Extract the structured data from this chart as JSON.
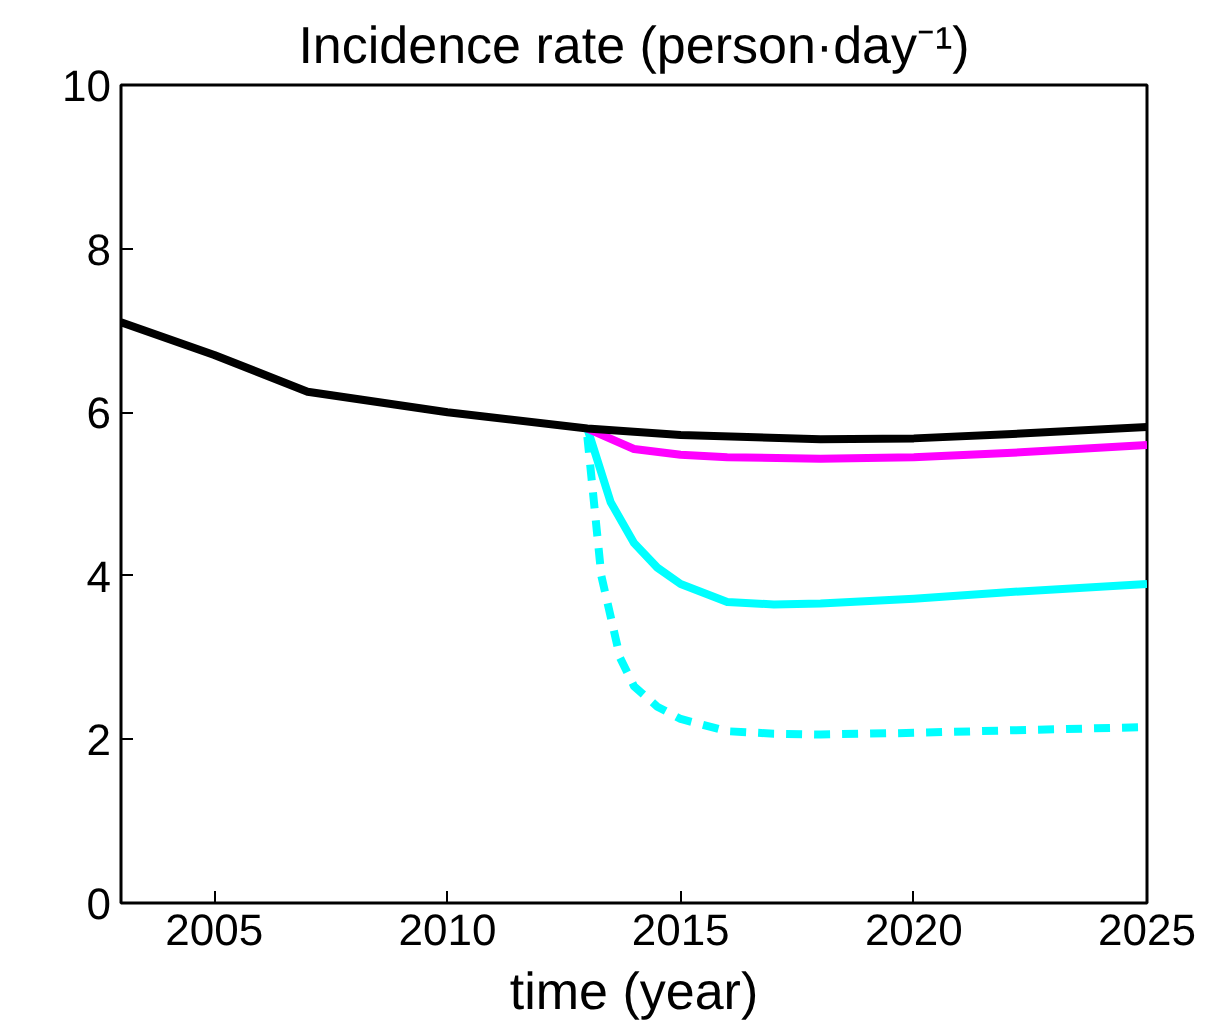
{
  "chart_data": {
    "type": "line",
    "title": "Incidence rate (person·day⁻¹)",
    "xlabel": "time (year)",
    "xlim": [
      2003,
      2025
    ],
    "xticks": [
      2005,
      2010,
      2015,
      2020,
      2025
    ],
    "ylim": [
      0,
      10
    ],
    "yticks": [
      0,
      2,
      4,
      6,
      8,
      10
    ],
    "grid": false,
    "series": [
      {
        "color": "#00ffff",
        "line_style": "dashed",
        "x": [
          2013,
          2013.3,
          2013.7,
          2014,
          2014.5,
          2015,
          2016,
          2017,
          2018,
          2020,
          2022,
          2025
        ],
        "values": [
          5.7,
          4.0,
          3.0,
          2.65,
          2.4,
          2.25,
          2.1,
          2.07,
          2.06,
          2.08,
          2.11,
          2.15
        ]
      },
      {
        "color": "#00ffff",
        "line_style": "solid",
        "x": [
          2013,
          2013.5,
          2014,
          2014.5,
          2015,
          2016,
          2017,
          2018,
          2020,
          2022,
          2025
        ],
        "values": [
          5.8,
          4.9,
          4.4,
          4.1,
          3.9,
          3.68,
          3.65,
          3.66,
          3.72,
          3.8,
          3.9
        ]
      },
      {
        "color": "#ff00ff",
        "line_style": "solid",
        "x": [
          2013,
          2014,
          2015,
          2016,
          2018,
          2020,
          2022,
          2025
        ],
        "values": [
          5.8,
          5.55,
          5.48,
          5.45,
          5.43,
          5.45,
          5.5,
          5.6
        ]
      },
      {
        "color": "#000000",
        "line_style": "solid",
        "x": [
          2003,
          2005,
          2007,
          2010,
          2013,
          2015,
          2018,
          2020,
          2022,
          2025
        ],
        "values": [
          7.1,
          6.7,
          6.25,
          6.0,
          5.8,
          5.72,
          5.67,
          5.68,
          5.73,
          5.82
        ]
      }
    ]
  }
}
